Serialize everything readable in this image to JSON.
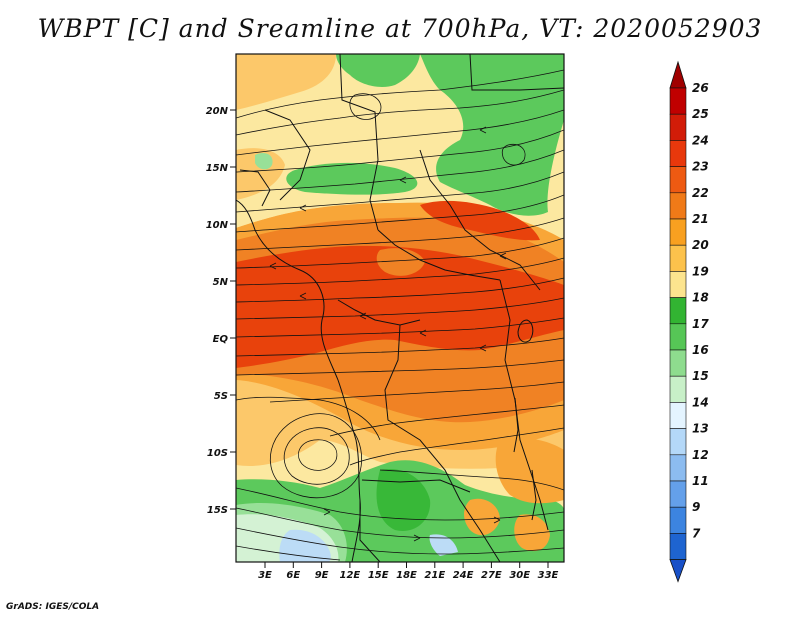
{
  "title": "WBPT [C] and Sreamline at 700hPa, VT: 2020052903",
  "credit": "GrADS: IGES/COLA",
  "lon_ticks": [
    "3E",
    "6E",
    "9E",
    "12E",
    "15E",
    "18E",
    "21E",
    "24E",
    "27E",
    "30E",
    "33E"
  ],
  "lat_ticks": [
    "20N",
    "15N",
    "10N",
    "5N",
    "EQ",
    "5S",
    "10S",
    "15S"
  ],
  "colorbar": {
    "levels": [
      "26",
      "25",
      "24",
      "23",
      "22",
      "21",
      "20",
      "19",
      "18",
      "17",
      "16",
      "15",
      "14",
      "13",
      "12",
      "11",
      "9",
      "7"
    ],
    "colors": [
      "#c00000",
      "#d21c08",
      "#e8380c",
      "#ee5a12",
      "#f07a18",
      "#f8a020",
      "#fcc24c",
      "#fce48e",
      "#32b432",
      "#56c656",
      "#8edc8e",
      "#c8f0c8",
      "#e4f4ff",
      "#b4d8f8",
      "#8cbcf0",
      "#64a0ea",
      "#3c84e0",
      "#1e64d0"
    ],
    "top_arrow_color": "#a00000",
    "bottom_arrow_color": "#1850c8"
  },
  "map_colors": {
    "c24": "#e8420c",
    "c22": "#f08224",
    "c21": "#f8a638",
    "c20": "#fcc86a",
    "c19": "#fce8a0",
    "c18": "#38b838",
    "c17": "#5cc95c",
    "c16": "#98e098",
    "c15": "#d4f2d4",
    "c13": "#bcdcf6"
  }
}
